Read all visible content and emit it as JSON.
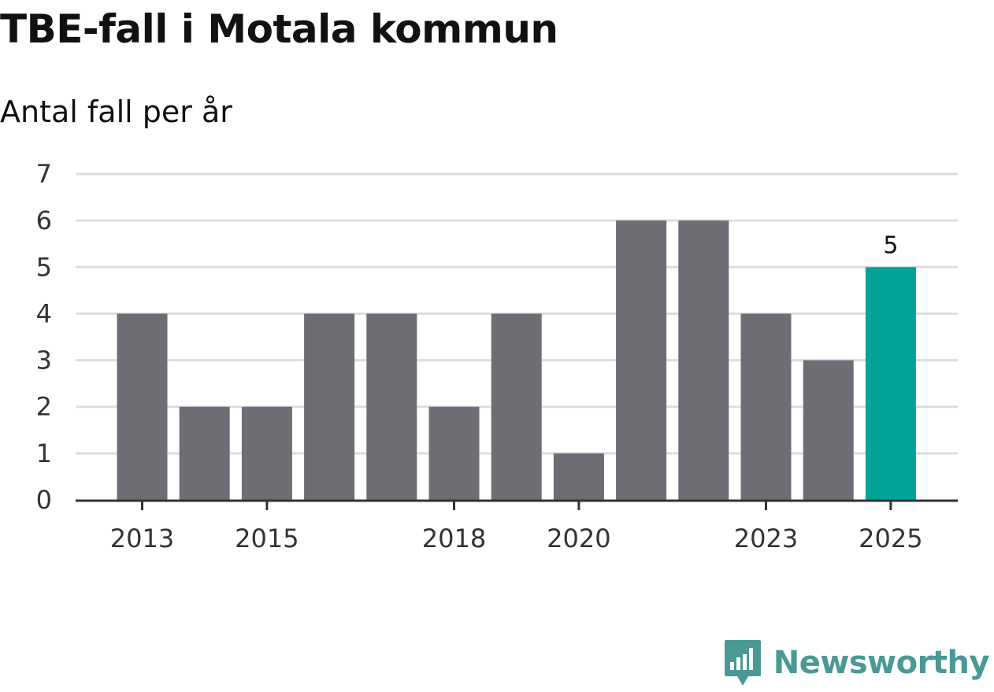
{
  "header": {
    "title": "TBE-fall i Motala kommun",
    "subtitle": "Antal fall per år"
  },
  "brand": {
    "name": "Newsworthy",
    "color": "#4a9994",
    "icon": "bar-chart-speech-bubble-icon"
  },
  "colors": {
    "bar": "#6e6d73",
    "highlight": "#00a397",
    "grid": "#dddddd",
    "axis": "#333333"
  },
  "chart_data": {
    "type": "bar",
    "categories": [
      "2013",
      "2014",
      "2015",
      "2016",
      "2017",
      "2018",
      "2019",
      "2020",
      "2021",
      "2022",
      "2023",
      "2024",
      "2025"
    ],
    "values": [
      4,
      2,
      2,
      4,
      4,
      2,
      4,
      1,
      6,
      6,
      4,
      3,
      5
    ],
    "x_tick_labels": [
      "2013",
      "2015",
      "2018",
      "2020",
      "2023",
      "2025"
    ],
    "y_ticks": [
      0,
      1,
      2,
      3,
      4,
      5,
      6,
      7
    ],
    "ylim": [
      0,
      7
    ],
    "highlight_category": "2025",
    "data_labels": [
      {
        "category": "2025",
        "text": "5"
      }
    ],
    "grid": true,
    "legend": false
  }
}
